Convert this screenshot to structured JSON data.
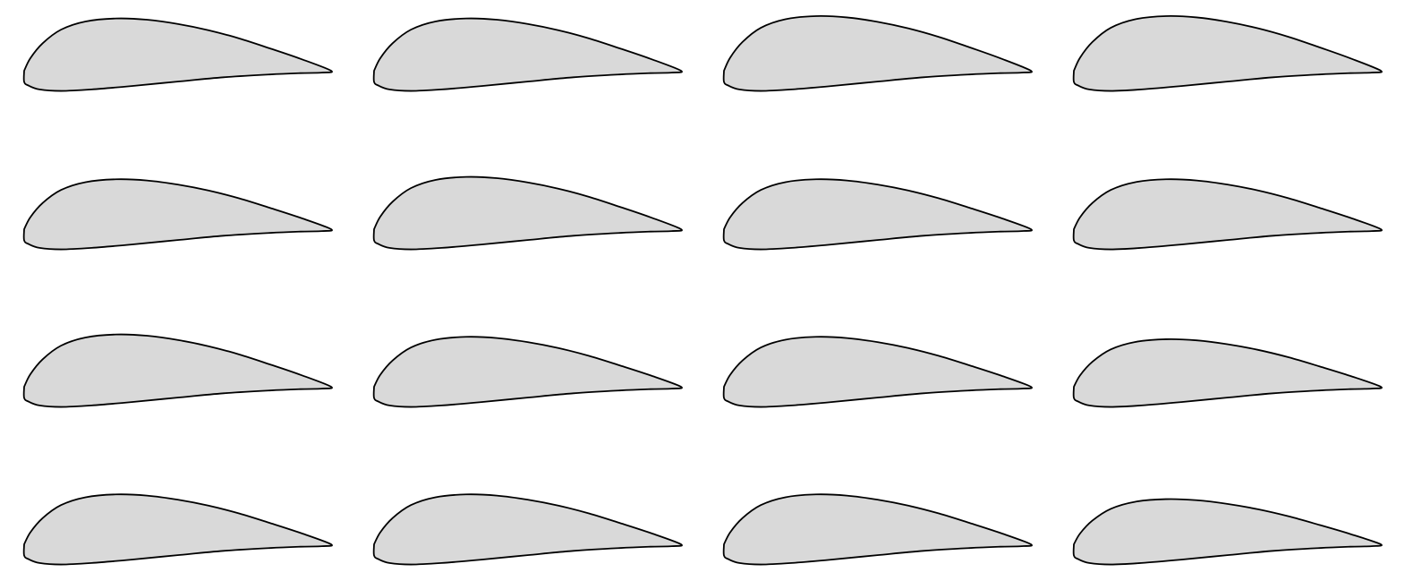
{
  "grid": {
    "rows": 4,
    "columns": 4,
    "count": 16
  },
  "style": {
    "fill_color": "#d9d9d9",
    "stroke_color": "#000000",
    "background": "#ffffff"
  },
  "airfoils": [
    {
      "row": 1,
      "col": 1,
      "max_thickness": 0.22,
      "lower_camber": 0.03
    },
    {
      "row": 1,
      "col": 2,
      "max_thickness": 0.22,
      "lower_camber": 0.03
    },
    {
      "row": 1,
      "col": 3,
      "max_thickness": 0.23,
      "lower_camber": 0.03
    },
    {
      "row": 1,
      "col": 4,
      "max_thickness": 0.23,
      "lower_camber": 0.03
    },
    {
      "row": 2,
      "col": 1,
      "max_thickness": 0.21,
      "lower_camber": 0.03
    },
    {
      "row": 2,
      "col": 2,
      "max_thickness": 0.22,
      "lower_camber": 0.03
    },
    {
      "row": 2,
      "col": 3,
      "max_thickness": 0.21,
      "lower_camber": 0.03
    },
    {
      "row": 2,
      "col": 4,
      "max_thickness": 0.21,
      "lower_camber": 0.03
    },
    {
      "row": 3,
      "col": 1,
      "max_thickness": 0.22,
      "lower_camber": 0.03
    },
    {
      "row": 3,
      "col": 2,
      "max_thickness": 0.21,
      "lower_camber": 0.03
    },
    {
      "row": 3,
      "col": 3,
      "max_thickness": 0.21,
      "lower_camber": 0.03
    },
    {
      "row": 3,
      "col": 4,
      "max_thickness": 0.2,
      "lower_camber": 0.03
    },
    {
      "row": 4,
      "col": 1,
      "max_thickness": 0.21,
      "lower_camber": 0.03
    },
    {
      "row": 4,
      "col": 2,
      "max_thickness": 0.21,
      "lower_camber": 0.03
    },
    {
      "row": 4,
      "col": 3,
      "max_thickness": 0.21,
      "lower_camber": 0.03
    },
    {
      "row": 4,
      "col": 4,
      "max_thickness": 0.19,
      "lower_camber": 0.03
    }
  ]
}
